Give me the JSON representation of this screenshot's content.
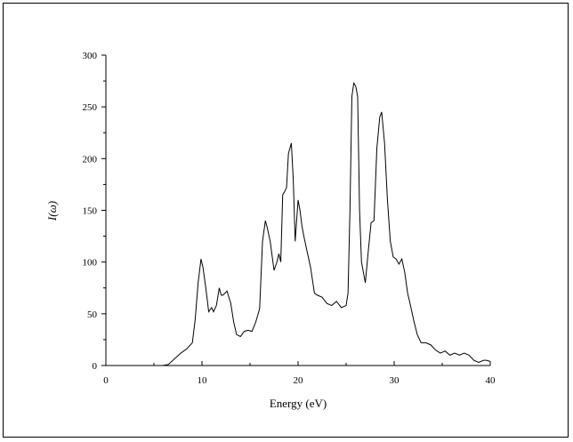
{
  "chart_data": {
    "type": "line",
    "title": "",
    "xlabel": "Energy (eV)",
    "ylabel": "I(ω)",
    "xlim": [
      0,
      40
    ],
    "ylim": [
      0,
      300
    ],
    "xticks": [
      0,
      10,
      20,
      30,
      40
    ],
    "yticks": [
      0,
      50,
      100,
      150,
      200,
      250,
      300
    ],
    "grid": false,
    "series": [
      {
        "x": [
          0,
          5,
          5.9,
          6.5,
          7.2,
          7.8,
          8.4,
          9.0,
          9.3,
          9.6,
          9.9,
          10.1,
          10.4,
          10.7,
          11.0,
          11.2,
          11.5,
          11.8,
          12.0,
          12.2,
          12.6,
          13.0,
          13.3,
          13.6,
          14.0,
          14.4,
          14.8,
          15.2,
          15.6,
          16.0,
          16.3,
          16.6,
          16.8,
          17.1,
          17.5,
          17.8,
          18.0,
          18.2,
          18.4,
          18.6,
          18.8,
          19.0,
          19.3,
          19.5,
          19.7,
          20.0,
          20.2,
          20.4,
          20.6,
          20.9,
          21.3,
          21.7,
          22.0,
          22.5,
          23.0,
          23.5,
          24.0,
          24.5,
          25.0,
          25.2,
          25.4,
          25.6,
          25.8,
          26.0,
          26.2,
          26.4,
          26.6,
          27.0,
          27.3,
          27.6,
          27.9,
          28.2,
          28.5,
          28.7,
          29.0,
          29.3,
          29.6,
          29.9,
          30.2,
          30.5,
          30.8,
          31.1,
          31.4,
          31.7,
          32.0,
          32.4,
          32.8,
          33.0,
          33.3,
          33.8,
          34.3,
          34.8,
          35.3,
          35.8,
          36.3,
          36.8,
          37.3,
          37.8,
          38.3,
          38.8,
          39.3,
          39.6,
          40.0
        ],
        "y": [
          0,
          0,
          0,
          1,
          7,
          12,
          16,
          22,
          45,
          80,
          103,
          95,
          75,
          52,
          56,
          52,
          58,
          75,
          68,
          68,
          72,
          60,
          42,
          30,
          28,
          33,
          34,
          33,
          42,
          55,
          120,
          140,
          133,
          120,
          92,
          100,
          108,
          100,
          165,
          168,
          172,
          205,
          215,
          180,
          120,
          160,
          150,
          135,
          125,
          112,
          95,
          70,
          68,
          66,
          60,
          58,
          62,
          56,
          58,
          70,
          150,
          260,
          273,
          270,
          260,
          150,
          100,
          80,
          110,
          138,
          140,
          210,
          240,
          245,
          215,
          160,
          120,
          105,
          103,
          98,
          103,
          90,
          70,
          58,
          45,
          30,
          22,
          22,
          22,
          20,
          15,
          12,
          14,
          10,
          12,
          10,
          12,
          10,
          5,
          3,
          5,
          5,
          4
        ]
      }
    ]
  }
}
